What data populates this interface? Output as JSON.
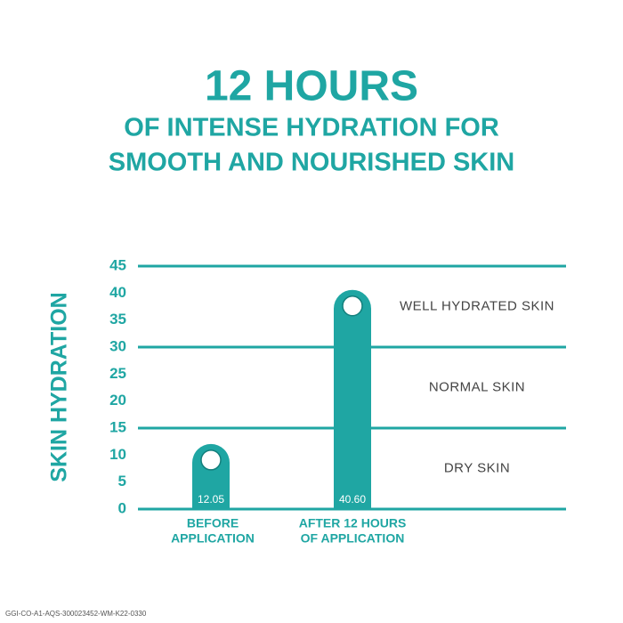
{
  "chart_data": {
    "type": "bar",
    "title": "12 HOURS",
    "subtitle": [
      "OF INTENSE HYDRATION FOR",
      "SMOOTH AND NOURISHED SKIN"
    ],
    "y_label": "SKIN HYDRATION",
    "categories": [
      [
        "BEFORE",
        "APPLICATION"
      ],
      [
        "AFTER 12 HOURS",
        "OF APPLICATION"
      ]
    ],
    "values": [
      12.05,
      40.6
    ],
    "value_labels": [
      "12.05",
      "40.60"
    ],
    "color": "#1fa6a3",
    "ylim": [
      0,
      45
    ],
    "yticks": [
      0,
      5,
      10,
      15,
      20,
      25,
      30,
      35,
      40,
      45
    ],
    "grid_lines": [
      0,
      15,
      30,
      45
    ],
    "zones": [
      {
        "label": "WELL HYDRATED SKIN",
        "from": 30,
        "to": 45
      },
      {
        "label": "NORMAL SKIN",
        "from": 15,
        "to": 30
      },
      {
        "label": "DRY SKIN",
        "from": 0,
        "to": 15
      }
    ],
    "footnote": "GGI-CO-A1-AQS-300023452-WM-K22-0330"
  }
}
